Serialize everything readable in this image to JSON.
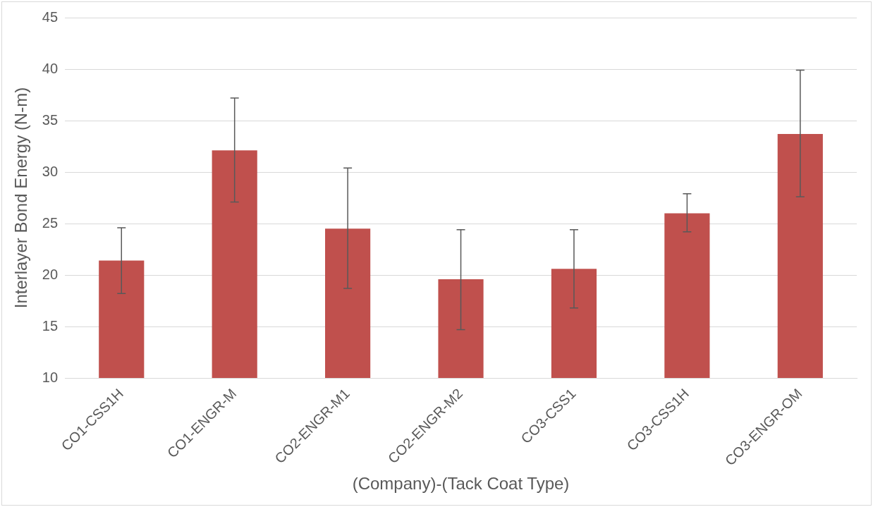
{
  "chart_data": {
    "type": "bar",
    "xlabel": "(Company)-(Tack Coat Type)",
    "ylabel": "Interlayer Bond Energy (N-m)",
    "categories": [
      "CO1-CSS1H",
      "CO1-ENGR-M",
      "CO2-ENGR-M1",
      "CO2-ENGR-M2",
      "CO3-CSS1",
      "CO3-CSS1H",
      "CO3-ENGR-OM"
    ],
    "values": [
      21.4,
      32.1,
      24.5,
      19.6,
      20.6,
      26.0,
      33.7
    ],
    "errors": [
      [
        18.2,
        24.6
      ],
      [
        27.1,
        37.2
      ],
      [
        18.7,
        30.4
      ],
      [
        14.7,
        24.4
      ],
      [
        16.8,
        24.4
      ],
      [
        24.2,
        27.9
      ],
      [
        27.6,
        39.9
      ]
    ],
    "color": "#c0504d",
    "ylim": [
      10,
      45
    ],
    "yticks": [
      10,
      15,
      20,
      25,
      30,
      35,
      40,
      45
    ],
    "grid": "y",
    "legend": false
  }
}
